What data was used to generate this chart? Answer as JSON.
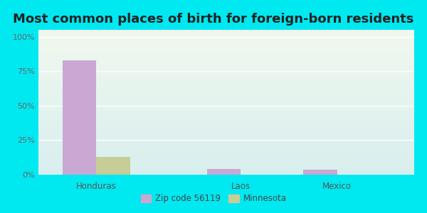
{
  "title": "Most common places of birth for foreign-born residents",
  "categories": [
    "Honduras",
    "Laos",
    "Mexico"
  ],
  "zip_values": [
    83,
    4,
    3.5
  ],
  "mn_values": [
    13,
    0,
    0
  ],
  "zip_color": "#c9a8d4",
  "mn_color": "#c8cc96",
  "zip_label": "Zip code 56119",
  "mn_label": "Minnesota",
  "yticks": [
    0,
    25,
    50,
    75,
    100
  ],
  "ytick_labels": [
    "0%",
    "25%",
    "50%",
    "75%",
    "100%"
  ],
  "ylim": [
    0,
    105
  ],
  "bg_outer": "#00e8f0",
  "bg_inner_top": "#f0f8ee",
  "bg_inner_bottom": "#d8eeee",
  "title_fontsize": 13,
  "bar_width": 0.35,
  "group_positions": [
    0.5,
    2.0,
    3.0
  ],
  "xlim": [
    -0.1,
    3.8
  ]
}
